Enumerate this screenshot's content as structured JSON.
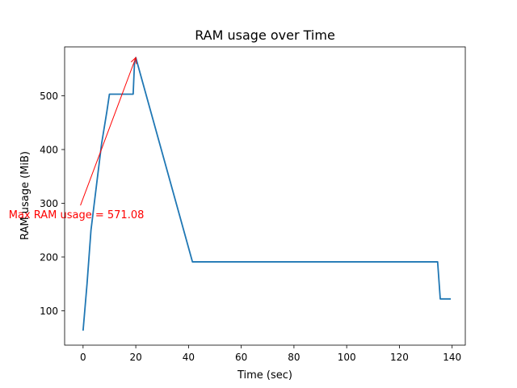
{
  "chart_data": {
    "type": "line",
    "title": "RAM usage over Time",
    "xlabel": "Time (sec)",
    "ylabel": "RAM usage (MiB)",
    "xlim": [
      -7,
      145
    ],
    "ylim": [
      36,
      591
    ],
    "xticks": [
      0,
      20,
      40,
      60,
      80,
      100,
      120,
      140
    ],
    "yticks": [
      100,
      200,
      300,
      400,
      500
    ],
    "grid": false,
    "series": [
      {
        "color": "#1f77b4",
        "x": [
          0,
          1.5,
          3,
          5,
          7,
          9,
          10,
          12,
          14,
          16,
          18,
          19,
          19.5,
          20,
          41.5,
          60,
          80,
          100,
          120,
          134.5,
          135.5,
          139.5
        ],
        "y": [
          63,
          150,
          250,
          330,
          410,
          470,
          503,
          503,
          503,
          503,
          503,
          503,
          560,
          571,
          191,
          191,
          191,
          191,
          191,
          191,
          122,
          122
        ]
      }
    ],
    "annotation": {
      "text": "Max RAM usage = 571.08",
      "color": "#ff0000",
      "xy": [
        20,
        571.08
      ],
      "xytext": [
        -1,
        296
      ]
    }
  }
}
